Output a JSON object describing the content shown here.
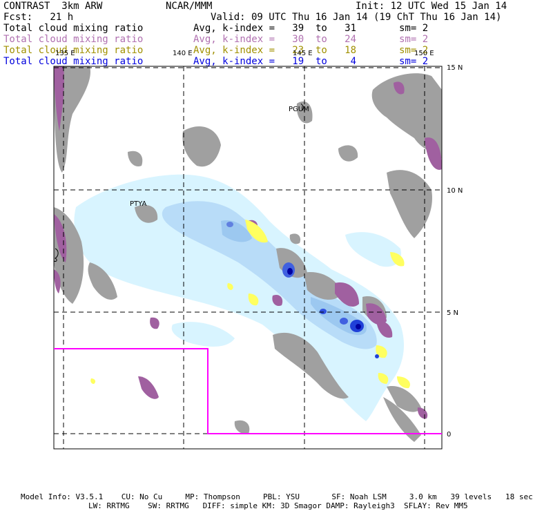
{
  "header": {
    "left1": "CONTRAST  3km ARW",
    "center1": "NCAR/MMM",
    "right1": "Init: 12 UTC Wed 15 Jan 14",
    "left2": "Fcst:   21 h",
    "right2": "Valid: 09 UTC Thu 16 Jan 14 (19 ChT Thu 16 Jan 14)",
    "rows": [
      {
        "field": "Total cloud mixing ratio",
        "avg": "Avg, k-index =   39  to   31",
        "sm": "sm= 2",
        "color": "#000000"
      },
      {
        "field": "Total cloud mixing ratio",
        "avg": "Avg, k-index =   30  to   24",
        "sm": "sm= 2",
        "color": "#b070b0"
      },
      {
        "field": "Total cloud mixing ratio",
        "avg": "Avg, k-index =   23  to   18",
        "sm": "sm= 2",
        "color": "#a09000"
      },
      {
        "field": "Total cloud mixing ratio",
        "avg": "Avg, k-index =   19  to    4",
        "sm": "sm= 2",
        "color": "#0000dd"
      }
    ]
  },
  "map": {
    "lon_labels": [
      "135 E",
      "140 E",
      "145 E",
      "150 E"
    ],
    "lat_labels": [
      "15 N",
      "10 N",
      "5 N",
      "0"
    ],
    "places": [
      "PGUM",
      "PTYA"
    ],
    "colors": {
      "gray": "#a0a0a0",
      "purple": "#a060a0",
      "yellow": "#ffff60",
      "lightcyan": "#d8f4ff",
      "lightblue": "#b8dcf8",
      "blue": "#2020d0",
      "boundary": "#ff00ff"
    }
  },
  "footer": {
    "line1": "Model Info: V3.5.1    CU: No Cu     MP: Thompson     PBL: YSU       SF: Noah LSM     3.0 km   39 levels   18 sec",
    "line2": "LW: RRTMG    SW: RRTMG   DIFF: simple KM: 3D Smagor DAMP: Rayleigh3  SFLAY: Rev MM5"
  }
}
